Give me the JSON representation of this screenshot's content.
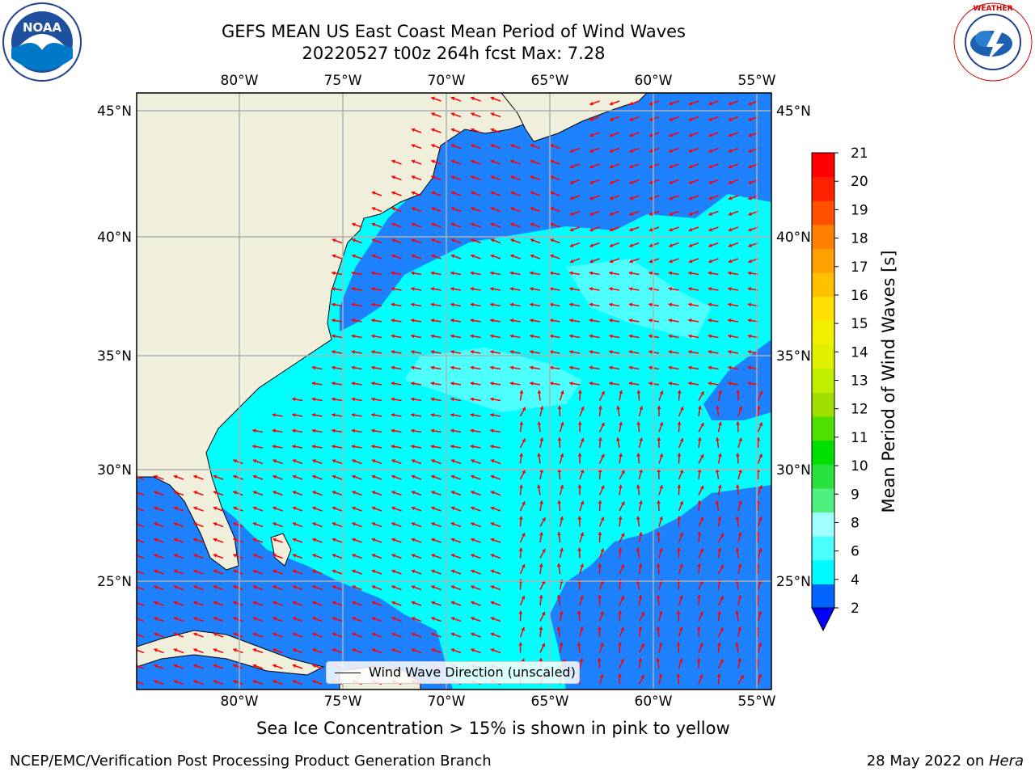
{
  "header": {
    "title_line1": "GEFS MEAN US East Coast Mean Period of Wind Waves",
    "title_line2": "20220527 t00z 264h fcst   Max: 7.28"
  },
  "logos": {
    "left": {
      "name": "noaa-logo",
      "text": "NOAA",
      "ring_text": "NATIONAL OCEANIC AND ATMOSPHERIC ADMINISTRATION U.S. DEPARTMENT OF COMMERCE"
    },
    "right": {
      "name": "nws-logo",
      "ring_text": "NATIONAL WEATHER SERVICE"
    }
  },
  "map": {
    "lon_labels": [
      "80°W",
      "75°W",
      "70°W",
      "65°W",
      "60°W",
      "55°W"
    ],
    "lat_labels": [
      "45°N",
      "40°N",
      "35°N",
      "30°N",
      "25°N"
    ],
    "colors": {
      "land": "#efefdc",
      "lt4": "#1e82ff",
      "band4_6": "#00ffff",
      "band6_8": "#4dffff",
      "band8_9": "#a0ffff",
      "arrow": "#ff0000",
      "grid": "#b0b0b0"
    }
  },
  "legend": {
    "label": "Wind Wave Direction (unscaled)"
  },
  "colorbar": {
    "label": "Mean Period of Wind Waves [s]",
    "ticks": [
      "2",
      "4",
      "6",
      "8",
      "9",
      "10",
      "11",
      "12",
      "13",
      "14",
      "15",
      "16",
      "17",
      "18",
      "19",
      "20",
      "21"
    ],
    "colors": [
      "#0064ff",
      "#00fbff",
      "#4cffff",
      "#a0ffff",
      "#50f080",
      "#28e040",
      "#00e000",
      "#50e000",
      "#a0e000",
      "#c0f000",
      "#e0f000",
      "#f0f000",
      "#ffe000",
      "#ffc000",
      "#ffa000",
      "#ff8000",
      "#ff5000",
      "#ff2000",
      "#ff0000"
    ],
    "under_color": "#0000ff"
  },
  "caption": "Sea Ice Concentration > 15% is shown in pink to yellow",
  "footer": {
    "left": "NCEP/EMC/Verification Post Processing Product Generation Branch",
    "right_prefix": "28 May 2022 on ",
    "right_machine": "Hera"
  }
}
